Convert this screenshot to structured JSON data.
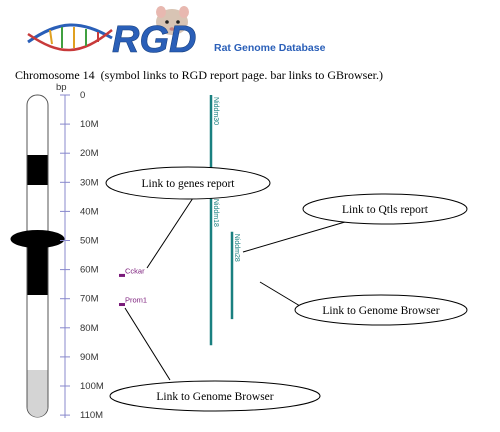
{
  "header": {
    "logo_text": "RGD",
    "tagline": "Rat Genome Database"
  },
  "caption": {
    "chromosome_label": "Chromosome 14",
    "note": "(symbol links to RGD report page. bar links to GBrowser.)"
  },
  "axis": {
    "unit": "bp",
    "ticks": [
      {
        "label": "0",
        "value": 0
      },
      {
        "label": "10M",
        "value": 10
      },
      {
        "label": "20M",
        "value": 20
      },
      {
        "label": "30M",
        "value": 30
      },
      {
        "label": "40M",
        "value": 40
      },
      {
        "label": "50M",
        "value": 50
      },
      {
        "label": "60M",
        "value": 60
      },
      {
        "label": "70M",
        "value": 70
      },
      {
        "label": "80M",
        "value": 80
      },
      {
        "label": "90M",
        "value": 90
      },
      {
        "label": "100M",
        "value": 100
      },
      {
        "label": "110M",
        "value": 110
      }
    ]
  },
  "genes": [
    {
      "symbol": "Cckar",
      "position": 62
    },
    {
      "symbol": "Prom1",
      "position": 72
    }
  ],
  "qtls": [
    {
      "symbol": "Niddm30",
      "start": 0,
      "end": 25
    },
    {
      "symbol": "Niddm18",
      "start": 35,
      "end": 86
    },
    {
      "symbol": "Niddm28",
      "start": 47,
      "end": 77
    }
  ],
  "callouts": {
    "genes_report": "Link to genes report",
    "qtls_report": "Link to Qtls report",
    "genome_browser_qtl": "Link to Genome Browser",
    "genome_browser_gene": "Link to Genome Browser"
  },
  "colors": {
    "logo_blue": "#2a5fb8",
    "gene_purple": "#7a1a7a",
    "qtl_teal": "#1a8080",
    "axis_blue": "#8888cc"
  }
}
